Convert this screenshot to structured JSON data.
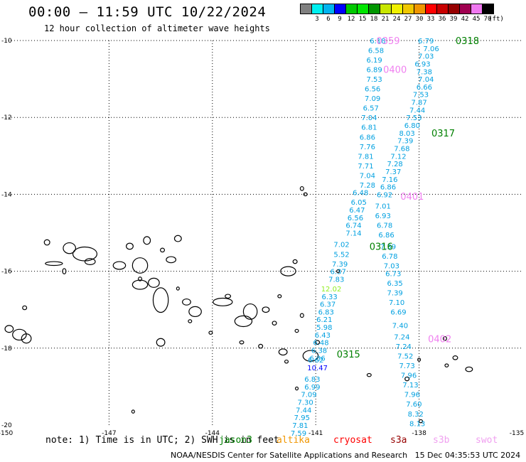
{
  "header": {
    "title": "00:00 — 11:59 UTC 10/22/2024",
    "subtitle": "12 hour collection of altimeter wave heights"
  },
  "legend": {
    "unit": "(ft)",
    "bins": [
      {
        "label": "",
        "color": "#808080"
      },
      {
        "label": "3",
        "color": "#00f0f0"
      },
      {
        "label": "6",
        "color": "#00b4f0"
      },
      {
        "label": "9",
        "color": "#0000ff"
      },
      {
        "label": "12",
        "color": "#00c800"
      },
      {
        "label": "15",
        "color": "#00e600"
      },
      {
        "label": "18",
        "color": "#009600"
      },
      {
        "label": "21",
        "color": "#c8e600"
      },
      {
        "label": "24",
        "color": "#f0f000"
      },
      {
        "label": "27",
        "color": "#f0c800"
      },
      {
        "label": "30",
        "color": "#f09600"
      },
      {
        "label": "33",
        "color": "#ff0000"
      },
      {
        "label": "36",
        "color": "#c80000"
      },
      {
        "label": "39",
        "color": "#960000"
      },
      {
        "label": "42",
        "color": "#a00050"
      },
      {
        "label": "45",
        "color": "#f078f0"
      },
      {
        "label": "70",
        "color": "#000000"
      }
    ]
  },
  "map": {
    "lon_range": [
      -150,
      -135
    ],
    "lat_range": [
      -20,
      -10
    ],
    "lon_ticks": [
      "-150",
      "-147",
      "-144",
      "-141",
      "-138",
      "-135"
    ],
    "lat_ticks": [
      "-10",
      "-12",
      "-14",
      "-16",
      "-18",
      "-20"
    ],
    "grid": "dotted",
    "pass_labels": [
      {
        "text": "0318",
        "lon": -136.6,
        "lat": -10.0,
        "color": "#008000"
      },
      {
        "text": "0359",
        "lon": -138.9,
        "lat": -10.0,
        "color": "#f080f0"
      },
      {
        "text": "0400",
        "lon": -138.7,
        "lat": -10.75,
        "color": "#f080f0"
      },
      {
        "text": "0317",
        "lon": -137.3,
        "lat": -12.4,
        "color": "#008000"
      },
      {
        "text": "0401",
        "lon": -138.2,
        "lat": -14.05,
        "color": "#f080f0"
      },
      {
        "text": "0316",
        "lon": -139.1,
        "lat": -15.35,
        "color": "#008000"
      },
      {
        "text": "0402",
        "lon": -137.4,
        "lat": -17.75,
        "color": "#f080f0"
      },
      {
        "text": "0315",
        "lon": -140.05,
        "lat": -18.15,
        "color": "#008000"
      }
    ],
    "track_colors": {
      "wave": "#00a0e0",
      "wave_dark": "#0000ff",
      "wave_green": "#90ee20"
    }
  },
  "tracks": [
    {
      "name": "jason3",
      "points": [
        {
          "v": "6.18",
          "lon": -139.2,
          "lat": -10.0
        },
        {
          "v": "6.58",
          "lon": -139.25,
          "lat": -10.25
        },
        {
          "v": "6.19",
          "lon": -139.3,
          "lat": -10.5
        },
        {
          "v": "6.89",
          "lon": -139.3,
          "lat": -10.75
        },
        {
          "v": "7.53",
          "lon": -139.3,
          "lat": -11.0
        },
        {
          "v": "6.56",
          "lon": -139.35,
          "lat": -11.25
        },
        {
          "v": "7.09",
          "lon": -139.35,
          "lat": -11.5
        },
        {
          "v": "6.57",
          "lon": -139.4,
          "lat": -11.75
        },
        {
          "v": "7.04",
          "lon": -139.45,
          "lat": -12.0
        },
        {
          "v": "6.81",
          "lon": -139.45,
          "lat": -12.25
        },
        {
          "v": "6.86",
          "lon": -139.5,
          "lat": -12.5
        },
        {
          "v": "7.76",
          "lon": -139.5,
          "lat": -12.75
        },
        {
          "v": "7.81",
          "lon": -139.55,
          "lat": -13.0
        },
        {
          "v": "7.71",
          "lon": -139.55,
          "lat": -13.25
        },
        {
          "v": "7.04",
          "lon": -139.5,
          "lat": -13.5
        },
        {
          "v": "7.28",
          "lon": -139.5,
          "lat": -13.75
        },
        {
          "v": "6.48",
          "lon": -139.7,
          "lat": -13.95
        },
        {
          "v": "6.05",
          "lon": -139.75,
          "lat": -14.2
        },
        {
          "v": "6.47",
          "lon": -139.8,
          "lat": -14.4
        },
        {
          "v": "6.56",
          "lon": -139.85,
          "lat": -14.6
        },
        {
          "v": "6.74",
          "lon": -139.9,
          "lat": -14.8
        },
        {
          "v": "7.14",
          "lon": -139.9,
          "lat": -15.0
        },
        {
          "v": "7.02",
          "lon": -140.25,
          "lat": -15.3
        },
        {
          "v": "5.52",
          "lon": -140.25,
          "lat": -15.55
        },
        {
          "v": "7.39",
          "lon": -140.3,
          "lat": -15.8
        },
        {
          "v": "6.37",
          "lon": -140.35,
          "lat": -16.0
        },
        {
          "v": "7.83",
          "lon": -140.4,
          "lat": -16.2
        },
        {
          "v": "12.02",
          "lon": -140.55,
          "lat": -16.45,
          "color": "wave_green"
        },
        {
          "v": "6.33",
          "lon": -140.6,
          "lat": -16.65
        },
        {
          "v": "6.37",
          "lon": -140.65,
          "lat": -16.85
        },
        {
          "v": "6.83",
          "lon": -140.7,
          "lat": -17.05
        },
        {
          "v": "6.21",
          "lon": -140.75,
          "lat": -17.25
        },
        {
          "v": "5.98",
          "lon": -140.75,
          "lat": -17.45
        },
        {
          "v": "6.43",
          "lon": -140.8,
          "lat": -17.65
        },
        {
          "v": "6.48",
          "lon": -140.85,
          "lat": -17.85
        },
        {
          "v": "6.38",
          "lon": -140.9,
          "lat": -18.05
        },
        {
          "v": "6.36",
          "lon": -140.95,
          "lat": -18.25
        },
        {
          "v": "6.62",
          "lon": -141.0,
          "lat": -18.3
        },
        {
          "v": "10.47",
          "lon": -140.95,
          "lat": -18.5,
          "color": "wave_dark"
        },
        {
          "v": "6.83",
          "lon": -141.1,
          "lat": -18.8
        },
        {
          "v": "6.99",
          "lon": -141.1,
          "lat": -19.0
        },
        {
          "v": "7.09",
          "lon": -141.2,
          "lat": -19.2
        },
        {
          "v": "7.30",
          "lon": -141.3,
          "lat": -19.4
        },
        {
          "v": "7.44",
          "lon": -141.35,
          "lat": -19.6
        },
        {
          "v": "7.95",
          "lon": -141.4,
          "lat": -19.8
        },
        {
          "v": "7.81",
          "lon": -141.45,
          "lat": -20.0
        },
        {
          "v": "7.59",
          "lon": -141.5,
          "lat": -20.2
        }
      ]
    },
    {
      "name": "swot",
      "points": [
        {
          "v": "6.79",
          "lon": -137.8,
          "lat": -10.0
        },
        {
          "v": "7.06",
          "lon": -137.65,
          "lat": -10.2
        },
        {
          "v": "7.03",
          "lon": -137.8,
          "lat": -10.4
        },
        {
          "v": "6.93",
          "lon": -137.9,
          "lat": -10.6
        },
        {
          "v": "7.38",
          "lon": -137.85,
          "lat": -10.8
        },
        {
          "v": "7.04",
          "lon": -137.8,
          "lat": -11.0
        },
        {
          "v": "6.66",
          "lon": -137.85,
          "lat": -11.2
        },
        {
          "v": "7.53",
          "lon": -137.95,
          "lat": -11.4
        },
        {
          "v": "7.87",
          "lon": -138.0,
          "lat": -11.6
        },
        {
          "v": "7.44",
          "lon": -138.05,
          "lat": -11.8
        },
        {
          "v": "7.53",
          "lon": -138.15,
          "lat": -12.0
        },
        {
          "v": "6.80",
          "lon": -138.2,
          "lat": -12.2
        },
        {
          "v": "8.03",
          "lon": -138.35,
          "lat": -12.4
        },
        {
          "v": "7.39",
          "lon": -138.4,
          "lat": -12.6
        },
        {
          "v": "7.68",
          "lon": -138.5,
          "lat": -12.8
        },
        {
          "v": "7.12",
          "lon": -138.6,
          "lat": -13.0
        },
        {
          "v": "7.28",
          "lon": -138.7,
          "lat": -13.2
        },
        {
          "v": "7.37",
          "lon": -138.75,
          "lat": -13.4
        },
        {
          "v": "7.16",
          "lon": -138.85,
          "lat": -13.6
        },
        {
          "v": "6.86",
          "lon": -138.9,
          "lat": -13.8
        },
        {
          "v": "6.92",
          "lon": -139.0,
          "lat": -14.0
        },
        {
          "v": "7.01",
          "lon": -139.05,
          "lat": -14.3
        },
        {
          "v": "6.93",
          "lon": -139.05,
          "lat": -14.55
        },
        {
          "v": "6.78",
          "lon": -139.0,
          "lat": -14.8
        },
        {
          "v": "6.86",
          "lon": -138.95,
          "lat": -15.05
        },
        {
          "v": "7.39",
          "lon": -138.9,
          "lat": -15.35
        },
        {
          "v": "6.78",
          "lon": -138.85,
          "lat": -15.6
        },
        {
          "v": "7.03",
          "lon": -138.8,
          "lat": -15.85
        },
        {
          "v": "6.73",
          "lon": -138.75,
          "lat": -16.05
        },
        {
          "v": "6.35",
          "lon": -138.7,
          "lat": -16.3
        },
        {
          "v": "7.39",
          "lon": -138.7,
          "lat": -16.55
        },
        {
          "v": "7.10",
          "lon": -138.65,
          "lat": -16.8
        },
        {
          "v": "6.69",
          "lon": -138.6,
          "lat": -17.05
        },
        {
          "v": "7.40",
          "lon": -138.55,
          "lat": -17.4
        },
        {
          "v": "7.24",
          "lon": -138.5,
          "lat": -17.7
        },
        {
          "v": "7.24",
          "lon": -138.45,
          "lat": -17.95
        },
        {
          "v": "7.52",
          "lon": -138.4,
          "lat": -18.2
        },
        {
          "v": "7.73",
          "lon": -138.35,
          "lat": -18.45
        },
        {
          "v": "7.96",
          "lon": -138.3,
          "lat": -18.7
        },
        {
          "v": "7.13",
          "lon": -138.25,
          "lat": -18.95
        },
        {
          "v": "7.96",
          "lon": -138.2,
          "lat": -19.2
        },
        {
          "v": "7.60",
          "lon": -138.15,
          "lat": -19.45
        },
        {
          "v": "8.32",
          "lon": -138.1,
          "lat": -19.7
        },
        {
          "v": "8.13",
          "lon": -138.05,
          "lat": -19.95
        }
      ]
    }
  ],
  "islands": [
    [
      -149.9,
      -17.5,
      0.12,
      0.09
    ],
    [
      -149.6,
      -17.65,
      0.2,
      0.14
    ],
    [
      -149.4,
      -17.75,
      0.14,
      0.12
    ],
    [
      -149.45,
      -16.95,
      0.06,
      0.05
    ],
    [
      -148.3,
      -16.0,
      0.05,
      0.07
    ],
    [
      -148.8,
      -15.25,
      0.08,
      0.07
    ],
    [
      -148.15,
      -15.4,
      0.18,
      0.14
    ],
    [
      -147.7,
      -15.55,
      0.35,
      0.18
    ],
    [
      -147.55,
      -15.75,
      0.15,
      0.08
    ],
    [
      -146.4,
      -15.35,
      0.1,
      0.08
    ],
    [
      -145.9,
      -15.2,
      0.1,
      0.1
    ],
    [
      -145.0,
      -15.15,
      0.1,
      0.08
    ],
    [
      -145.45,
      -15.45,
      0.06,
      0.05
    ],
    [
      -146.1,
      -15.85,
      0.22,
      0.2
    ],
    [
      -146.7,
      -15.85,
      0.18,
      0.1
    ],
    [
      -145.2,
      -15.7,
      0.14,
      0.08
    ],
    [
      -146.1,
      -16.35,
      0.22,
      0.12
    ],
    [
      -145.7,
      -16.3,
      0.16,
      0.12
    ],
    [
      -145.5,
      -16.75,
      0.22,
      0.32
    ],
    [
      -146.1,
      -16.2,
      0.05,
      0.05
    ],
    [
      -145.0,
      -16.45,
      0.04,
      0.04
    ],
    [
      -144.75,
      -16.8,
      0.12,
      0.08
    ],
    [
      -144.5,
      -17.05,
      0.18,
      0.13
    ],
    [
      -143.7,
      -16.8,
      0.28,
      0.1
    ],
    [
      -143.55,
      -16.65,
      0.08,
      0.05
    ],
    [
      -142.9,
      -17.05,
      0.2,
      0.2
    ],
    [
      -143.1,
      -17.3,
      0.25,
      0.14
    ],
    [
      -142.45,
      -17.0,
      0.1,
      0.07
    ],
    [
      -142.05,
      -16.65,
      0.05,
      0.04
    ],
    [
      -142.2,
      -17.35,
      0.06,
      0.05
    ],
    [
      -145.5,
      -17.85,
      0.12,
      0.1
    ],
    [
      -144.65,
      -17.3,
      0.05,
      0.04
    ],
    [
      -144.05,
      -17.6,
      0.05,
      0.04
    ],
    [
      -143.15,
      -17.85,
      0.06,
      0.04
    ],
    [
      -142.6,
      -17.95,
      0.06,
      0.05
    ],
    [
      -141.8,
      -16.0,
      0.22,
      0.12
    ],
    [
      -141.6,
      -15.75,
      0.06,
      0.05
    ],
    [
      -141.4,
      -17.15,
      0.05,
      0.05
    ],
    [
      -141.55,
      -17.55,
      0.05,
      0.04
    ],
    [
      -140.95,
      -17.85,
      0.06,
      0.05
    ],
    [
      -141.15,
      -18.2,
      0.22,
      0.14
    ],
    [
      -140.35,
      -16.0,
      0.04,
      0.04
    ],
    [
      -141.95,
      -18.1,
      0.12,
      0.08
    ],
    [
      -141.85,
      -18.35,
      0.05,
      0.04
    ],
    [
      -141.55,
      -19.05,
      0.04,
      0.04
    ],
    [
      -139.45,
      -18.7,
      0.06,
      0.04
    ],
    [
      -138.35,
      -18.8,
      0.06,
      0.05
    ],
    [
      -137.25,
      -17.75,
      0.05,
      0.05
    ],
    [
      -136.95,
      -18.25,
      0.07,
      0.05
    ],
    [
      -136.55,
      -18.55,
      0.1,
      0.06
    ],
    [
      -137.2,
      -18.45,
      0.05,
      0.04
    ],
    [
      -138.0,
      -18.3,
      0.04,
      0.04
    ],
    [
      -141.4,
      -13.85,
      0.05,
      0.05
    ],
    [
      -141.3,
      -14.0,
      0.05,
      0.04
    ],
    [
      -148.6,
      -15.8,
      0.25,
      0.05
    ],
    [
      -146.3,
      -19.65,
      0.04,
      0.04
    ],
    [
      -137.95,
      -19.9,
      0.05,
      0.04
    ]
  ],
  "footer": {
    "note": "note:  1) Time is in UTC; 2) SWH is in feet",
    "satellites": [
      {
        "name": "jason3",
        "color": "#008000"
      },
      {
        "name": "altika",
        "color": "#f09600"
      },
      {
        "name": "cryosat",
        "color": "#ff0000"
      },
      {
        "name": "s3a",
        "color": "#960000"
      },
      {
        "name": "s3b",
        "color": "#f0a0f0"
      },
      {
        "name": "swot",
        "color": "#f0a0f0"
      }
    ],
    "credit": "NOAA/NESDIS Center for Satellite Applications and Research",
    "timestamp": "15 Dec 04:35:53 UTC 2024"
  }
}
